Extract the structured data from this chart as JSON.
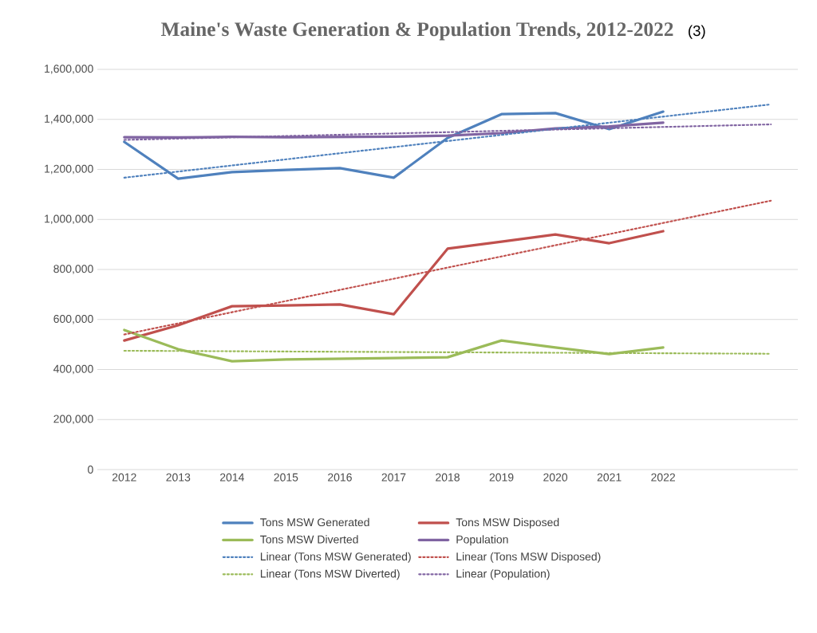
{
  "chart_data": {
    "type": "line",
    "title": "Maine's Waste Generation & Population Trends, 2012-2022",
    "annotations": [
      "(3)"
    ],
    "xlim": [
      2011.5,
      2024.5
    ],
    "xticks": [
      2012,
      2013,
      2014,
      2015,
      2016,
      2017,
      2018,
      2019,
      2020,
      2021,
      2022
    ],
    "ylim": [
      0,
      1600000
    ],
    "yticks": [
      {
        "value": 0,
        "label": "0"
      },
      {
        "value": 200000,
        "label": "200,000"
      },
      {
        "value": 400000,
        "label": "400,000"
      },
      {
        "value": 600000,
        "label": "600,000"
      },
      {
        "value": 800000,
        "label": "800,000"
      },
      {
        "value": 1000000,
        "label": "1,000,000"
      },
      {
        "value": 1200000,
        "label": "1,200,000"
      },
      {
        "value": 1400000,
        "label": "1,400,000"
      },
      {
        "value": 1600000,
        "label": "1,600,000"
      }
    ],
    "grid": "y",
    "legend": "bottom",
    "marker": "none",
    "series": [
      {
        "name": "Tons MSW Generated",
        "color": "#4f81bd",
        "line_style": "solid",
        "x": [
          2012,
          2013,
          2014,
          2015,
          2016,
          2017,
          2018,
          2019,
          2020,
          2021,
          2022
        ],
        "values": [
          1310000,
          1163000,
          1189000,
          1198000,
          1205000,
          1167000,
          1326000,
          1421000,
          1425000,
          1361000,
          1431000
        ]
      },
      {
        "name": "Tons MSW Disposed",
        "color": "#c0504d",
        "line_style": "solid",
        "x": [
          2012,
          2013,
          2014,
          2015,
          2016,
          2017,
          2018,
          2019,
          2020,
          2021,
          2022
        ],
        "values": [
          516000,
          577000,
          653000,
          656000,
          660000,
          621000,
          883000,
          911000,
          940000,
          905000,
          953000
        ]
      },
      {
        "name": "Tons MSW Diverted",
        "color": "#9bbb59",
        "line_style": "solid",
        "x": [
          2012,
          2013,
          2014,
          2015,
          2016,
          2017,
          2018,
          2019,
          2020,
          2021,
          2022
        ],
        "values": [
          558000,
          481000,
          433000,
          440000,
          443000,
          446000,
          449000,
          516000,
          488000,
          462000,
          488000
        ]
      },
      {
        "name": "Population",
        "color": "#8064a2",
        "line_style": "solid",
        "x": [
          2012,
          2013,
          2014,
          2015,
          2016,
          2017,
          2018,
          2019,
          2020,
          2021,
          2022
        ],
        "values": [
          1329000,
          1328000,
          1330000,
          1329000,
          1330000,
          1331000,
          1335000,
          1345000,
          1364000,
          1372000,
          1387000
        ]
      },
      {
        "name": "Linear (Tons MSW Generated)",
        "color": "#4f81bd",
        "line_style": "dotted",
        "x": [
          2012,
          2024
        ],
        "values": [
          1167000,
          1460000
        ]
      },
      {
        "name": "Linear (Tons MSW Disposed)",
        "color": "#c0504d",
        "line_style": "dotted",
        "x": [
          2012,
          2024
        ],
        "values": [
          540000,
          1075000
        ]
      },
      {
        "name": "Linear (Tons MSW Diverted)",
        "color": "#9bbb59",
        "line_style": "dotted",
        "x": [
          2012,
          2024
        ],
        "values": [
          475000,
          463000
        ]
      },
      {
        "name": "Linear (Population)",
        "color": "#8064a2",
        "line_style": "dotted",
        "x": [
          2012,
          2024
        ],
        "values": [
          1318000,
          1380000
        ]
      }
    ]
  }
}
